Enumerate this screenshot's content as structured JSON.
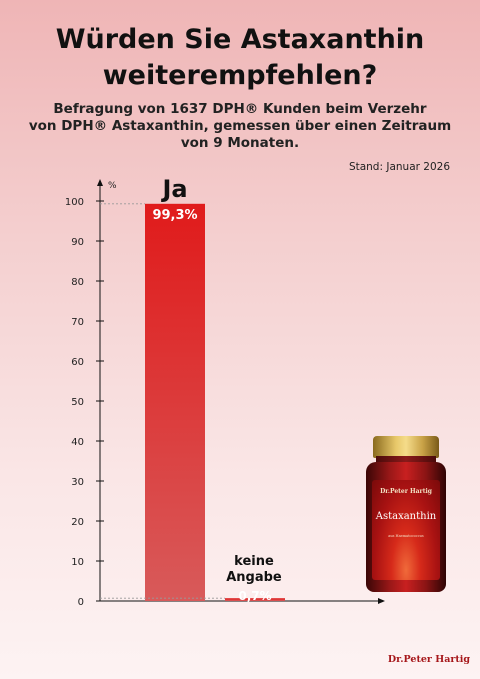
{
  "header": {
    "title_line1": "Würden Sie Astaxanthin",
    "title_line2": "weiterempfehlen?",
    "subtitle_line1": "Befragung von 1637 DPH® Kunden beim Verzehr",
    "subtitle_line2": "von DPH® Astaxanthin, gemessen über einen Zeitraum",
    "subtitle_line3": "von 9 Monaten.",
    "stand": "Stand: Januar 2026"
  },
  "product": {
    "brand": "Dr.Peter Hartig",
    "name": "Astaxanthin",
    "sub": "aus Haematococcus"
  },
  "footer": {
    "logo": "Dr.Peter Hartig"
  },
  "colors": {
    "bar_top": "#e01b1b",
    "bar_bottom": "#d85a5a",
    "accent": "#a6171a"
  },
  "chart_data": {
    "type": "bar",
    "title": "Würden Sie Astaxanthin weiterempfehlen?",
    "ylabel": "%",
    "ylim": [
      0,
      100
    ],
    "yticks": [
      0,
      10,
      20,
      30,
      40,
      50,
      60,
      70,
      80,
      90,
      100
    ],
    "grid": false,
    "categories": [
      "Ja",
      "keine Angabe"
    ],
    "category_labels": [
      [
        "Ja"
      ],
      [
        "keine",
        "Angabe"
      ]
    ],
    "values": [
      99.3,
      0.7
    ],
    "value_labels": [
      "99,3%",
      "0,7%"
    ]
  }
}
